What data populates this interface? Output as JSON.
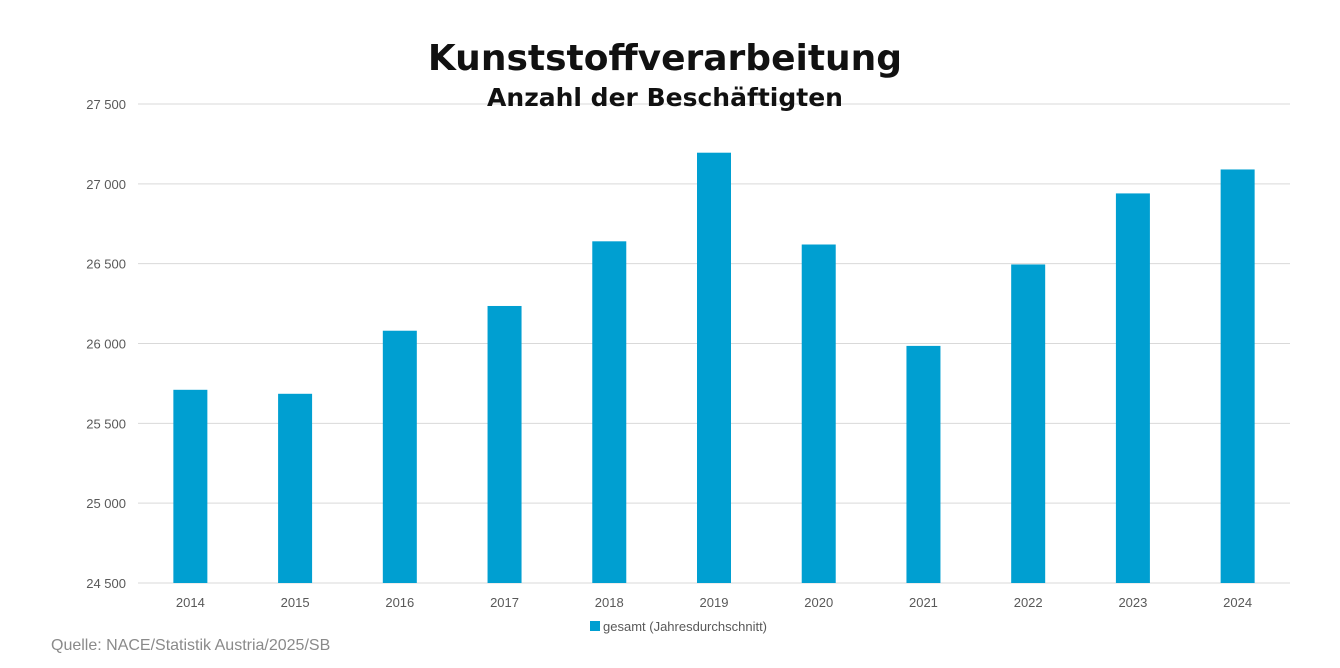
{
  "chart_data": {
    "type": "bar",
    "title": "Kunststoffverarbeitung",
    "subtitle": "Anzahl der Beschäftigten",
    "categories": [
      "2014",
      "2015",
      "2016",
      "2017",
      "2018",
      "2019",
      "2020",
      "2021",
      "2022",
      "2023",
      "2024"
    ],
    "series": [
      {
        "name": "gesamt (Jahresdurchschnitt)",
        "color": "#009fd1",
        "values": [
          25710,
          25685,
          26080,
          26235,
          26640,
          27195,
          26620,
          25985,
          26495,
          26940,
          27090
        ]
      }
    ],
    "ylim": [
      24500,
      27500
    ],
    "yticks": [
      24500,
      25000,
      25500,
      26000,
      26500,
      27000,
      27500
    ],
    "ytick_labels": [
      "24 500",
      "25 000",
      "25 500",
      "26 000",
      "26 500",
      "27 000",
      "27 500"
    ],
    "xlabel": "",
    "ylabel": "",
    "grid": true,
    "legend_position": "bottom-center",
    "gridline_color": "#d9d9d9",
    "tick_label_color": "#595959"
  },
  "source_text": "Quelle: NACE/Statistik Austria/2025/SB"
}
